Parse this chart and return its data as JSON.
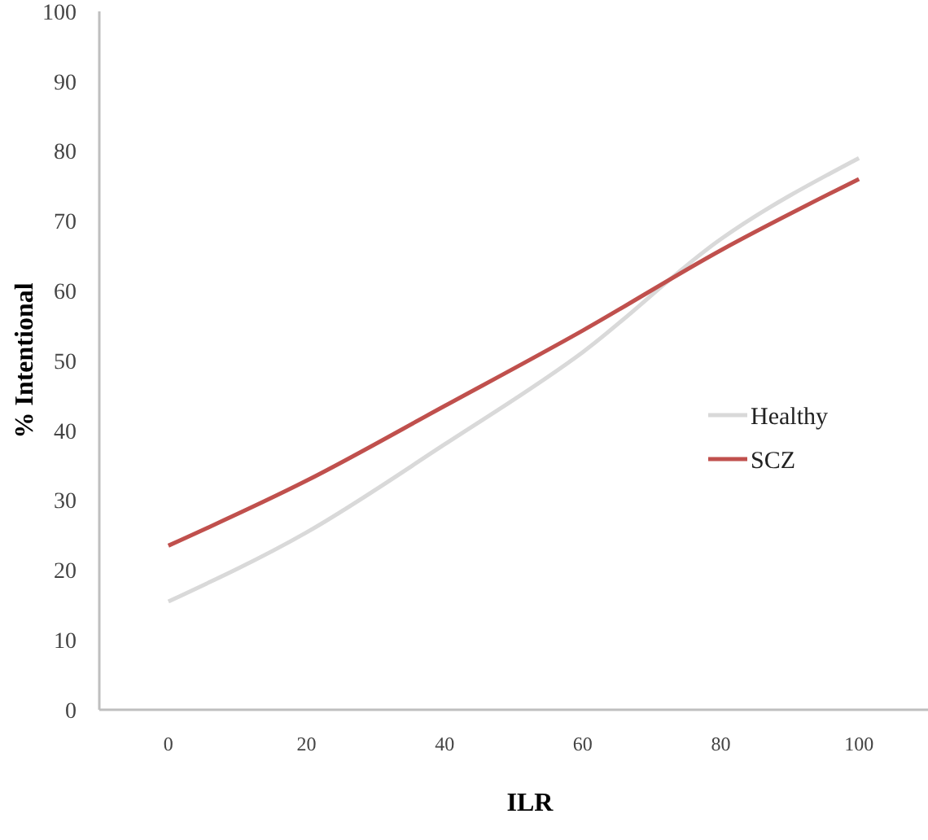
{
  "chart_data": {
    "type": "line",
    "xlabel": "ILR",
    "ylabel": "% Intentional",
    "x": [
      0,
      20,
      40,
      60,
      80,
      100
    ],
    "xlim": [
      -10,
      110
    ],
    "xticks": [
      0,
      20,
      40,
      60,
      80,
      100
    ],
    "ylim": [
      0,
      100
    ],
    "yticks": [
      0,
      10,
      20,
      30,
      40,
      50,
      60,
      70,
      80,
      90,
      100
    ],
    "series": [
      {
        "name": "Healthy",
        "color": "#d9d9d9",
        "values": [
          15.5,
          25.4,
          38,
          51.2,
          67.4,
          79
        ]
      },
      {
        "name": "SCZ",
        "color": "#c0504d",
        "values": [
          23.5,
          32.8,
          43.5,
          54.3,
          65.8,
          76
        ]
      }
    ],
    "legend": "right",
    "grid": false,
    "marker": "none",
    "line_style": "solid"
  }
}
